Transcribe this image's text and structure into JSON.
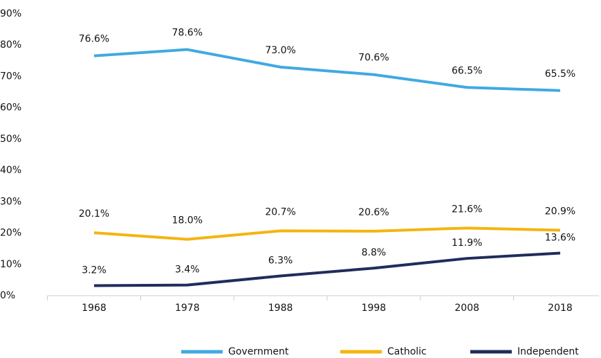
{
  "chart_data": {
    "type": "line",
    "categories": [
      "1968",
      "1978",
      "1988",
      "1998",
      "2008",
      "2018"
    ],
    "series": [
      {
        "name": "Government",
        "color": "#41a9e1",
        "values": [
          76.6,
          78.6,
          73.0,
          70.6,
          66.5,
          65.5
        ],
        "value_labels": [
          "76.6%",
          "78.6%",
          "73.0%",
          "70.6%",
          "66.5%",
          "65.5%"
        ]
      },
      {
        "name": "Catholic",
        "color": "#f5b40f",
        "values": [
          20.1,
          18.0,
          20.7,
          20.6,
          21.6,
          20.9
        ],
        "value_labels": [
          "20.1%",
          "18.0%",
          "20.7%",
          "20.6%",
          "21.6%",
          "20.9%"
        ]
      },
      {
        "name": "Independent",
        "color": "#1f2d5c",
        "values": [
          3.2,
          3.4,
          6.3,
          8.8,
          11.9,
          13.6
        ],
        "value_labels": [
          "3.2%",
          "3.4%",
          "6.3%",
          "8.8%",
          "11.9%",
          "13.6%"
        ]
      }
    ],
    "ylim": [
      0,
      90
    ],
    "yticks": [
      {
        "value": 0,
        "label": "0%"
      },
      {
        "value": 10,
        "label": "10%"
      },
      {
        "value": 20,
        "label": "20%"
      },
      {
        "value": 30,
        "label": "30%"
      },
      {
        "value": 40,
        "label": "40%"
      },
      {
        "value": 50,
        "label": "50%"
      },
      {
        "value": 60,
        "label": "60%"
      },
      {
        "value": 70,
        "label": "70%"
      },
      {
        "value": 80,
        "label": "80%"
      },
      {
        "value": 90,
        "label": "90%"
      }
    ],
    "grid": false,
    "legend": "bottom"
  }
}
